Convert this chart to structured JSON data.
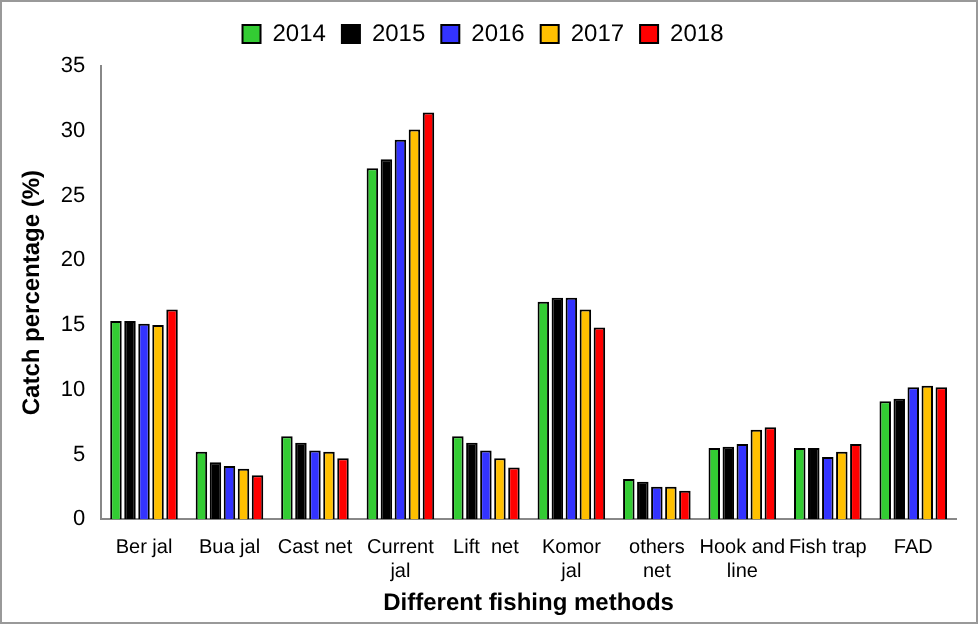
{
  "chart_data": {
    "type": "bar",
    "xlabel": "Different fishing methods",
    "ylabel": "Catch percentage (%)",
    "categories": [
      "Ber jal",
      "Bua jal",
      "Cast net",
      "Current jal",
      "Lift  net",
      "Komor jal",
      "others net",
      "Hook and line",
      "Fish trap",
      "FAD"
    ],
    "series": [
      {
        "name": "2014",
        "color": "#33cc33",
        "values": [
          15.3,
          5.2,
          6.4,
          27.1,
          6.4,
          16.8,
          3.1,
          5.5,
          5.5,
          9.1
        ]
      },
      {
        "name": "2015",
        "color": "#000000",
        "values": [
          15.3,
          4.4,
          5.9,
          27.8,
          5.9,
          17.1,
          2.9,
          5.6,
          5.5,
          9.3
        ]
      },
      {
        "name": "2016",
        "color": "#3333ff",
        "values": [
          15.1,
          4.1,
          5.3,
          29.3,
          5.3,
          17.1,
          2.5,
          5.8,
          4.8,
          10.2
        ]
      },
      {
        "name": "2017",
        "color": "#ffc000",
        "values": [
          15.0,
          3.9,
          5.2,
          30.1,
          4.7,
          16.2,
          2.5,
          6.9,
          5.2,
          10.3
        ]
      },
      {
        "name": "2018",
        "color": "#ff0000",
        "values": [
          16.2,
          3.4,
          4.7,
          31.4,
          4.0,
          14.8,
          2.2,
          7.1,
          5.8,
          10.2
        ]
      }
    ],
    "ylim": [
      0,
      35
    ],
    "yticks": [
      0,
      5,
      10,
      15,
      20,
      25,
      30,
      35
    ],
    "grid": false,
    "legend": "top"
  }
}
